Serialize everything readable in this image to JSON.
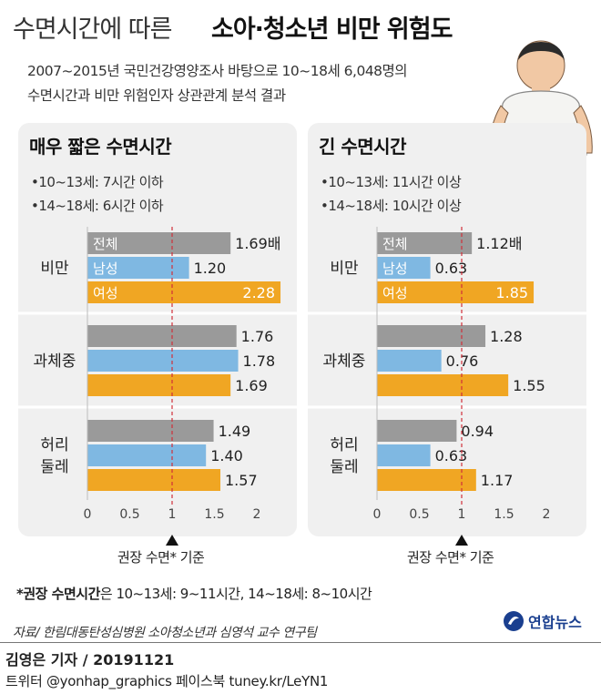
{
  "title": {
    "light": "수면시간에 따른",
    "bold": "소아·청소년 비만 위험도"
  },
  "subtitle": [
    "2007~2015년 국민건강영양조사 바탕으로 10~18세 6,048명의",
    "수면시간과 비만 위험인자 상관관계 분석 결과"
  ],
  "colors": {
    "total": "#9a9a9a",
    "male": "#7fb8e2",
    "female": "#f0a623",
    "panel": "#f0f0f0",
    "refline": "#d0303a"
  },
  "footnote": {
    "bold": "*권장 수면시간",
    "rest": "은 10~13세: 9~11시간, 14~18세: 8~10시간"
  },
  "source": "자료/ 한림대동탄성심병원 소아청소년과 심영석 교수 연구팀",
  "logo": "연합뉴스",
  "byline": "김영은 기자 / 20191121",
  "social": "트위터 @yonhap_graphics  페이스북 tuney.kr/LeYN1",
  "chart_data": [
    {
      "type": "bar",
      "orientation": "horizontal",
      "title": "매우 짧은 수면시간",
      "criteria": [
        "•10~13세: 7시간 이하",
        "•14~18세: 6시간 이하"
      ],
      "categories": [
        "비만",
        "과체중",
        "허리 둘레"
      ],
      "series": [
        {
          "name": "전체",
          "values": [
            1.69,
            1.76,
            1.49
          ]
        },
        {
          "name": "남성",
          "values": [
            1.2,
            1.78,
            1.4
          ]
        },
        {
          "name": "여성",
          "values": [
            2.28,
            1.69,
            1.57
          ]
        }
      ],
      "value_labels": [
        [
          "1.69배",
          "1.20",
          "2.28"
        ],
        [
          "1.76",
          "1.78",
          "1.69"
        ],
        [
          "1.49",
          "1.40",
          "1.57"
        ]
      ],
      "xlim": [
        0,
        2.3
      ],
      "xticks": [
        "0",
        "0.5",
        "1",
        "1.5",
        "2"
      ],
      "reference_value": 1,
      "reference_label": "권장 수면* 기준"
    },
    {
      "type": "bar",
      "orientation": "horizontal",
      "title": "긴 수면시간",
      "criteria": [
        "•10~13세: 11시간 이상",
        "•14~18세: 10시간 이상"
      ],
      "categories": [
        "비만",
        "과체중",
        "허리 둘레"
      ],
      "series": [
        {
          "name": "전체",
          "values": [
            1.12,
            1.28,
            0.94
          ]
        },
        {
          "name": "남성",
          "values": [
            0.63,
            0.76,
            0.63
          ]
        },
        {
          "name": "여성",
          "values": [
            1.85,
            1.55,
            1.17
          ]
        }
      ],
      "value_labels": [
        [
          "1.12배",
          "0.63",
          "1.85"
        ],
        [
          "1.28",
          "0.76",
          "1.55"
        ],
        [
          "0.94",
          "0.63",
          "1.17"
        ]
      ],
      "xlim": [
        0,
        2.3
      ],
      "xticks": [
        "0",
        "0.5",
        "1",
        "1.5",
        "2"
      ],
      "reference_value": 1,
      "reference_label": "권장 수면* 기준"
    }
  ]
}
